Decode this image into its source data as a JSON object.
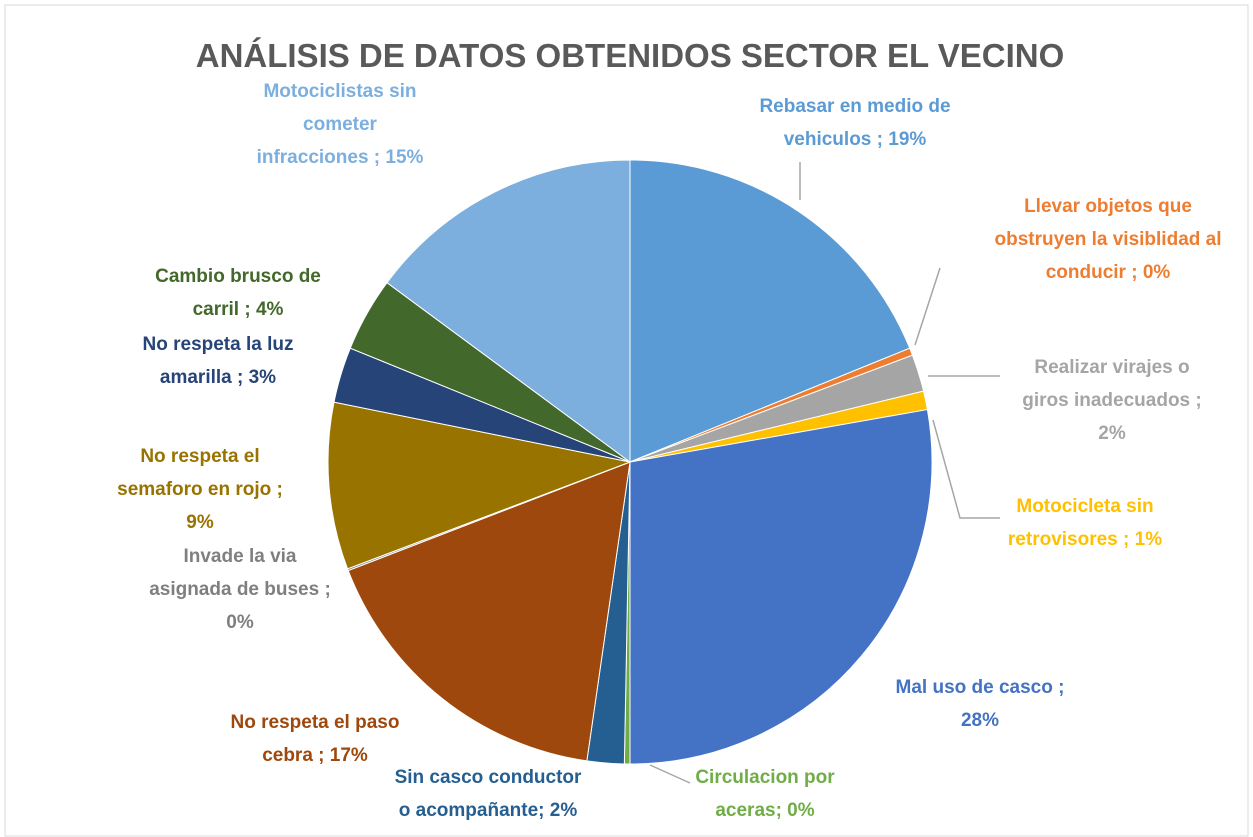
{
  "chart_data": {
    "type": "pie",
    "title": "ANÁLISIS DE DATOS OBTENIDOS SECTOR EL VECINO",
    "labels": [
      [
        "Rebasar en medio de",
        "vehiculos ; 19%"
      ],
      [
        "Llevar objetos que",
        "obstruyen la visiblidad al",
        "conducir ; 0%"
      ],
      [
        "Realizar virajes o",
        "giros inadecuados ;",
        "2%"
      ],
      [
        "Motocicleta sin",
        "retrovisores ; 1%"
      ],
      [
        "Mal uso de casco ;",
        "28%"
      ],
      [
        "Circulacion por",
        "aceras; 0%"
      ],
      [
        "Sin casco conductor",
        "o acompañante; 2%"
      ],
      [
        "No respeta el paso",
        "cebra ; 17%"
      ],
      [
        "Invade la via",
        "asignada de buses ;",
        "0%"
      ],
      [
        "No respeta el",
        "semaforo en rojo ;",
        "9%"
      ],
      [
        "No respeta la luz",
        "amarilla ; 3%"
      ],
      [
        "Cambio brusco de",
        "carril ; 4%"
      ],
      [
        "Motociclistas sin",
        "cometer",
        "infracciones ; 15%"
      ]
    ],
    "values": [
      19,
      0.4,
      2,
      1,
      28,
      0.3,
      2,
      17,
      0.1,
      9,
      3,
      4,
      15
    ],
    "colors": [
      "#5b9bd5",
      "#ed7d31",
      "#a5a5a5",
      "#ffc000",
      "#4472c4",
      "#70ad47",
      "#255e91",
      "#9e480e",
      "#7f7f7f",
      "#997300",
      "#264478",
      "#43682b",
      "#7cafdd"
    ]
  }
}
